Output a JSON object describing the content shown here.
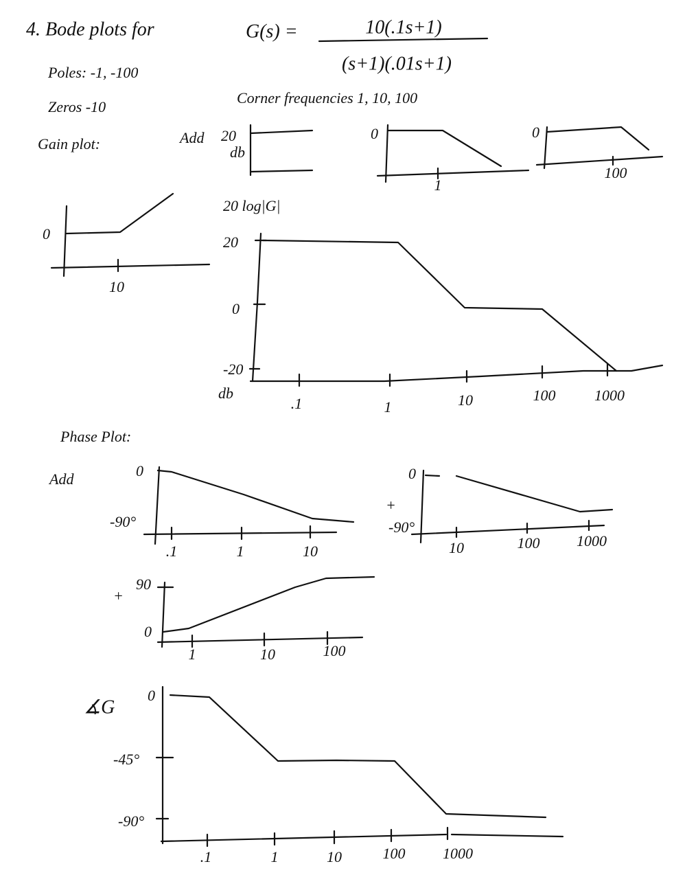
{
  "header": {
    "title": "4. Bode plots for",
    "lhs": "G(s) =",
    "numerator": "10(.1s+1)",
    "denominator": "(s+1)(.01s+1)"
  },
  "notes": {
    "poles": "Poles: -1, -100",
    "zeros": "Zeros -10",
    "corners": "Corner frequencies 1, 10, 100"
  },
  "gain": {
    "heading": "Gain plot:",
    "add_label": "Add",
    "sketch1": {
      "y_label": "20",
      "y_unit": "db"
    },
    "sketch2": {
      "y_label": "0",
      "x_label": "1"
    },
    "sketch3": {
      "y_label": "0",
      "x_label": "100"
    },
    "sketch4": {
      "y_label": "0",
      "x_label": "10"
    },
    "main": {
      "y_title": "20 log|G|",
      "y_ticks": [
        "20",
        "0",
        "-20"
      ],
      "y_unit": "db",
      "x_ticks": [
        ".1",
        "1",
        "10",
        "100",
        "1000"
      ]
    }
  },
  "phase": {
    "heading": "Phase Plot:",
    "add_label": "Add",
    "sketch1": {
      "y_ticks": [
        "0",
        "-90°"
      ],
      "x_ticks": [
        ".1",
        "1",
        "10"
      ]
    },
    "sketch2": {
      "sign": "+",
      "y_ticks": [
        "0",
        "-90°"
      ],
      "x_ticks": [
        "10",
        "100",
        "1000"
      ]
    },
    "sketch3": {
      "sign": "+",
      "y_ticks": [
        "90",
        "0"
      ],
      "x_ticks": [
        "1",
        "10",
        "100"
      ]
    },
    "total": {
      "y_title": "∡G",
      "y_ticks": [
        "0",
        "-45°",
        "-90°"
      ],
      "x_ticks": [
        ".1",
        "1",
        "10",
        "100",
        "1000"
      ]
    }
  }
}
